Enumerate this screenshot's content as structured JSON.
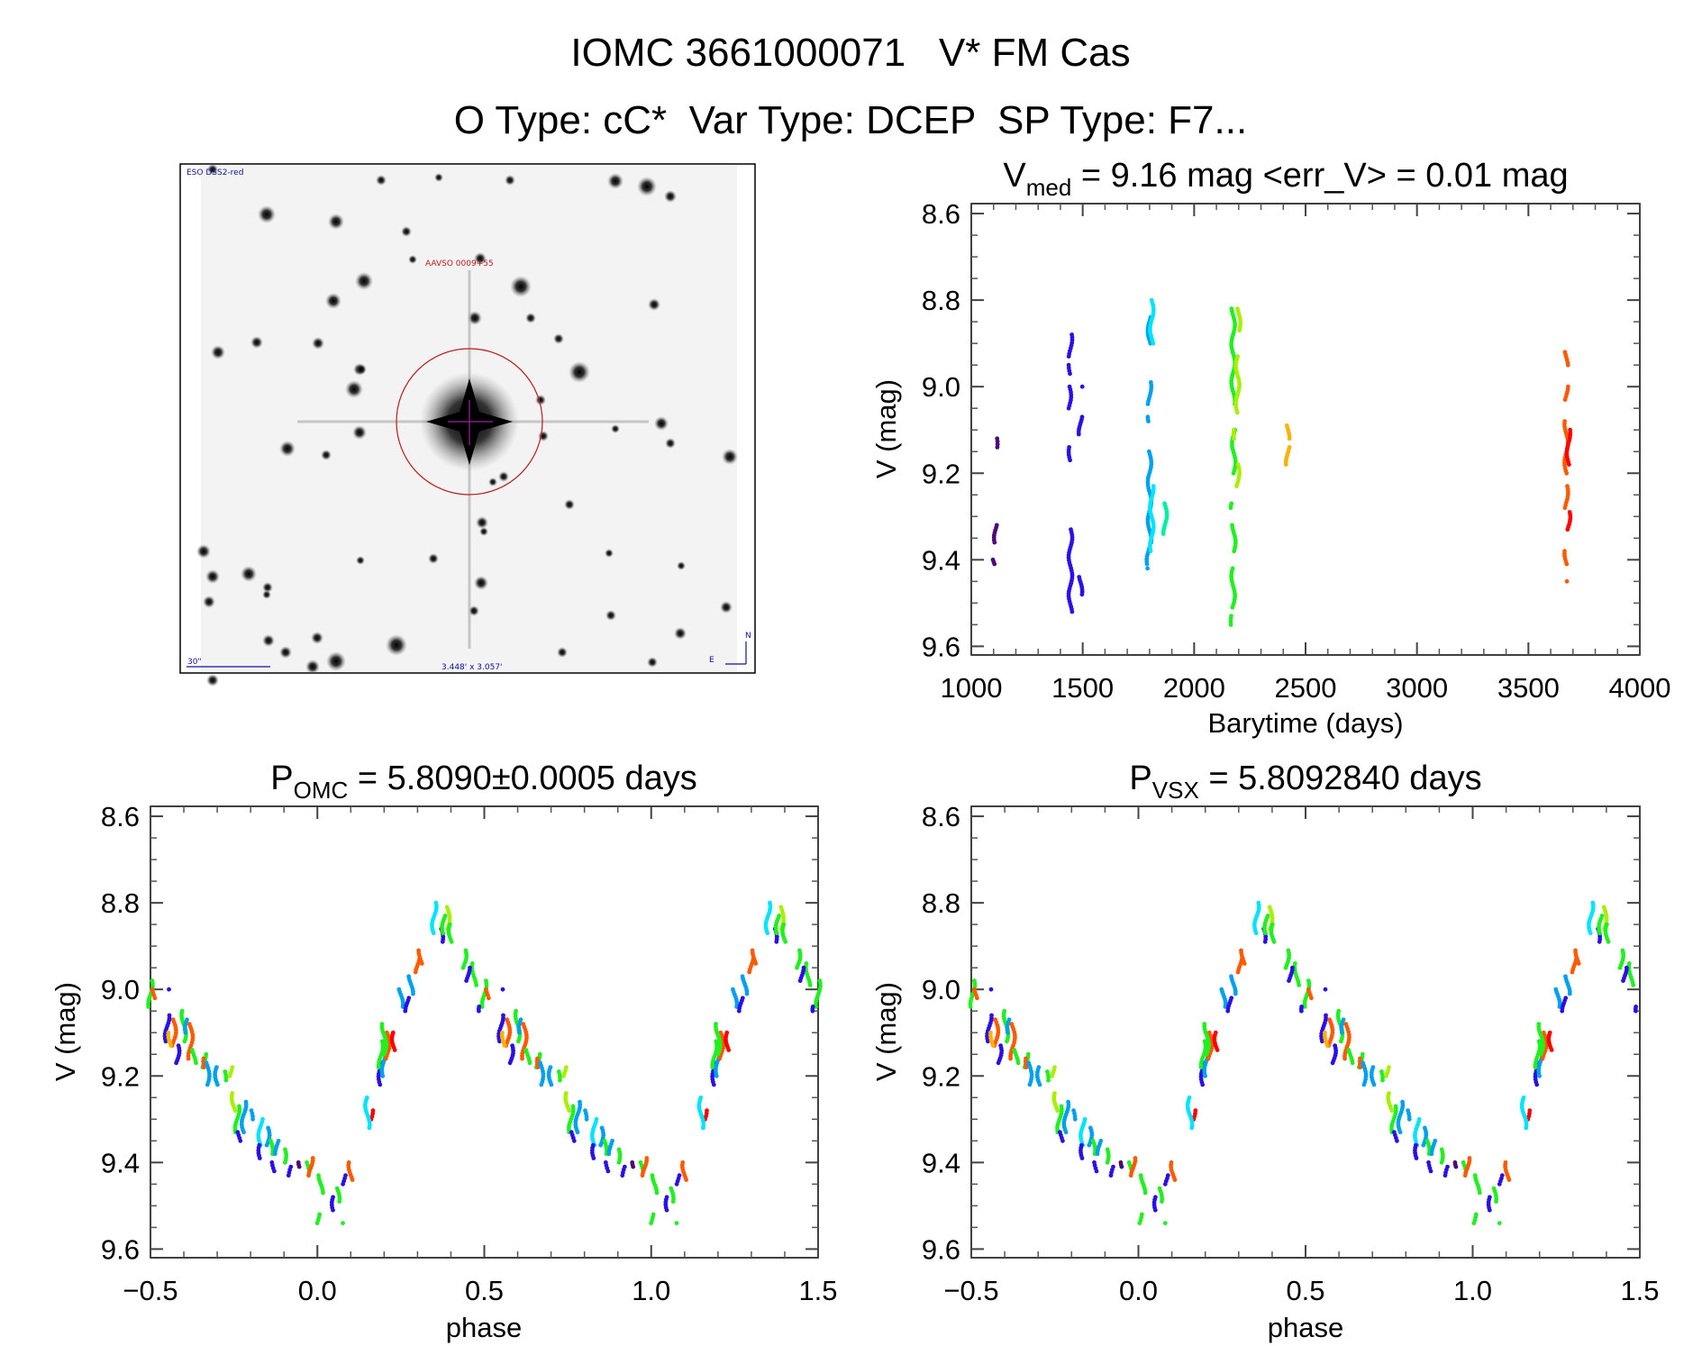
{
  "header": {
    "line1": "IOMC 3661000071   V* FM Cas",
    "line2": "O Type: cC*  Var Type: DCEP  SP Type: F7..."
  },
  "finder_image": {
    "survey_label": "ESO DSS2-red",
    "target_label": "AAVSO 0009+55",
    "scale_label": "30\"",
    "fov_label": "3.448' x 3.057'",
    "north_label": "N",
    "east_label": "E"
  },
  "colors": [
    "#4b0a78",
    "#2a10e8",
    "#00a0f0",
    "#00e4ff",
    "#20f020",
    "#a8f000",
    "#ffb000",
    "#ff5a00",
    "#ff0000",
    "#00f0a0"
  ],
  "chart_data": [
    {
      "id": "lightcurve",
      "type": "scatter",
      "title": {
        "main": "V",
        "sub": "med",
        "rest": " = 9.16 mag <err_V> = 0.01 mag"
      },
      "xlabel": "Barytime (days)",
      "ylabel": "V (mag)",
      "xlim": [
        1000,
        4000
      ],
      "ylim": [
        9.62,
        8.577
      ],
      "xticks": [
        {
          "v": 1000,
          "l": "1000"
        },
        {
          "v": 1500,
          "l": "1500"
        },
        {
          "v": 2000,
          "l": "2000"
        },
        {
          "v": 2500,
          "l": "2500"
        },
        {
          "v": 3000,
          "l": "3000"
        },
        {
          "v": 3500,
          "l": "3500"
        },
        {
          "v": 4000,
          "l": "4000"
        }
      ],
      "yticks": [
        {
          "v": 8.6,
          "l": "8.6"
        },
        {
          "v": 8.8,
          "l": "8.8"
        },
        {
          "v": 9.0,
          "l": "9.0"
        },
        {
          "v": 9.2,
          "l": "9.2"
        },
        {
          "v": 9.4,
          "l": "9.4"
        },
        {
          "v": 9.6,
          "l": "9.6"
        }
      ],
      "x_minor": 100,
      "y_minor": 0.05,
      "segments_note": "each segment = [time, mag_low, mag_high, color_index]",
      "segments": [
        [
          1110,
          9.12,
          9.14,
          0
        ],
        [
          1110,
          9.32,
          9.36,
          0
        ],
        [
          1100,
          9.4,
          9.41,
          0
        ],
        [
          1445,
          8.88,
          8.93,
          1
        ],
        [
          1445,
          8.95,
          8.97,
          1
        ],
        [
          1440,
          9.0,
          9.05,
          1
        ],
        [
          1445,
          9.14,
          9.17,
          1
        ],
        [
          1445,
          9.33,
          9.52,
          1
        ],
        [
          1490,
          9.0,
          9.0,
          1
        ],
        [
          1490,
          9.07,
          9.11,
          1
        ],
        [
          1490,
          9.44,
          9.48,
          1
        ],
        [
          1800,
          8.84,
          8.9,
          2
        ],
        [
          1800,
          8.99,
          9.04,
          2
        ],
        [
          1800,
          9.07,
          9.08,
          2
        ],
        [
          1800,
          9.15,
          9.36,
          2
        ],
        [
          1795,
          9.37,
          9.41,
          2
        ],
        [
          1795,
          9.42,
          9.42,
          2
        ],
        [
          1810,
          8.8,
          8.9,
          3
        ],
        [
          1810,
          9.23,
          9.38,
          3
        ],
        [
          1870,
          9.27,
          9.34,
          9
        ],
        [
          2175,
          8.82,
          9.04,
          4
        ],
        [
          2178,
          9.1,
          9.2,
          4
        ],
        [
          2172,
          9.27,
          9.28,
          4
        ],
        [
          2178,
          9.32,
          9.38,
          4
        ],
        [
          2175,
          9.42,
          9.51,
          4
        ],
        [
          2172,
          9.53,
          9.55,
          4
        ],
        [
          2200,
          8.82,
          8.87,
          5
        ],
        [
          2195,
          8.93,
          9.06,
          5
        ],
        [
          2195,
          9.18,
          9.23,
          5
        ],
        [
          2185,
          9.1,
          9.12,
          5
        ],
        [
          2420,
          9.09,
          9.12,
          6
        ],
        [
          2420,
          9.14,
          9.18,
          6
        ],
        [
          3670,
          8.92,
          8.95,
          7
        ],
        [
          3670,
          9.0,
          9.03,
          7
        ],
        [
          3670,
          9.08,
          9.2,
          7
        ],
        [
          3670,
          9.23,
          9.28,
          7
        ],
        [
          3670,
          9.38,
          9.41,
          7
        ],
        [
          3668,
          9.45,
          9.45,
          7
        ],
        [
          3680,
          9.1,
          9.18,
          8
        ],
        [
          3680,
          9.29,
          9.33,
          8
        ]
      ]
    },
    {
      "id": "phase_omc",
      "type": "scatter",
      "title": {
        "main": "P",
        "sub": "OMC",
        "rest": " = 5.8090±0.0005 days"
      },
      "xlabel": "phase",
      "ylabel": "V (mag)",
      "xlim": [
        -0.5,
        1.5
      ],
      "ylim": [
        9.62,
        8.577
      ],
      "xticks": [
        {
          "v": -0.5,
          "l": "−0.5"
        },
        {
          "v": 0,
          "l": "0.0"
        },
        {
          "v": 0.5,
          "l": "0.5"
        },
        {
          "v": 1.0,
          "l": "1.0"
        },
        {
          "v": 1.5,
          "l": "1.5"
        }
      ],
      "yticks": [
        {
          "v": 8.6,
          "l": "8.6"
        },
        {
          "v": 8.8,
          "l": "8.8"
        },
        {
          "v": 9.0,
          "l": "9.0"
        },
        {
          "v": 9.2,
          "l": "9.2"
        },
        {
          "v": 9.4,
          "l": "9.4"
        },
        {
          "v": 9.6,
          "l": "9.6"
        }
      ],
      "x_minor": 0.1,
      "y_minor": 0.05,
      "period_days": 5.809
    },
    {
      "id": "phase_vsx",
      "type": "scatter",
      "title": {
        "main": "P",
        "sub": "VSX",
        "rest": " = 5.8092840 days"
      },
      "xlabel": "phase",
      "ylabel": "V (mag)",
      "xlim": [
        -0.5,
        1.5
      ],
      "ylim": [
        9.62,
        8.577
      ],
      "xticks": [
        {
          "v": -0.5,
          "l": "−0.5"
        },
        {
          "v": 0,
          "l": "0.0"
        },
        {
          "v": 0.5,
          "l": "0.5"
        },
        {
          "v": 1.0,
          "l": "1.0"
        },
        {
          "v": 1.5,
          "l": "1.5"
        }
      ],
      "yticks": [
        {
          "v": 8.6,
          "l": "8.6"
        },
        {
          "v": 8.8,
          "l": "8.8"
        },
        {
          "v": 9.0,
          "l": "9.0"
        },
        {
          "v": 9.2,
          "l": "9.2"
        },
        {
          "v": 9.4,
          "l": "9.4"
        },
        {
          "v": 9.6,
          "l": "9.6"
        }
      ],
      "x_minor": 0.1,
      "y_minor": 0.05,
      "period_days": 5.809284
    }
  ],
  "phase_segments_note": "folded points in phase [0,1): [phase, mag_low, mag_high, color_index]; plotted repeated over -0.5..1.5",
  "phase_segments": [
    [
      0.5,
      8.98,
      9.04,
      4
    ],
    [
      0.51,
      9.0,
      9.02,
      7
    ],
    [
      0.55,
      9.0,
      9.0,
      1
    ],
    [
      0.55,
      9.06,
      9.12,
      1
    ],
    [
      0.57,
      9.07,
      9.13,
      7
    ],
    [
      0.56,
      9.1,
      9.13,
      6
    ],
    [
      0.58,
      9.13,
      9.17,
      1
    ],
    [
      0.6,
      9.05,
      9.12,
      4
    ],
    [
      0.61,
      9.07,
      9.1,
      2
    ],
    [
      0.62,
      9.08,
      9.16,
      7
    ],
    [
      0.63,
      9.14,
      9.17,
      4
    ],
    [
      0.66,
      9.15,
      9.18,
      4
    ],
    [
      0.665,
      9.16,
      9.18,
      7
    ],
    [
      0.67,
      9.17,
      9.22,
      2
    ],
    [
      0.7,
      9.18,
      9.22,
      2
    ],
    [
      0.72,
      9.19,
      9.21,
      4
    ],
    [
      0.74,
      9.18,
      9.2,
      5
    ],
    [
      0.75,
      9.24,
      9.28,
      5
    ],
    [
      0.76,
      9.27,
      9.33,
      4
    ],
    [
      0.765,
      9.33,
      9.35,
      1
    ],
    [
      0.78,
      9.26,
      9.33,
      2
    ],
    [
      0.8,
      9.28,
      9.3,
      2
    ],
    [
      0.83,
      9.3,
      9.36,
      3
    ],
    [
      0.85,
      9.32,
      9.36,
      2
    ],
    [
      0.83,
      9.36,
      9.39,
      1
    ],
    [
      0.86,
      9.35,
      9.38,
      4
    ],
    [
      0.88,
      9.35,
      9.38,
      2
    ],
    [
      0.87,
      9.4,
      9.42,
      1
    ],
    [
      0.9,
      9.37,
      9.4,
      4
    ],
    [
      0.92,
      9.41,
      9.43,
      1
    ],
    [
      0.95,
      9.4,
      9.41,
      0
    ],
    [
      0.97,
      9.4,
      9.42,
      4
    ],
    [
      0.98,
      9.39,
      9.43,
      7
    ],
    [
      0.01,
      9.43,
      9.47,
      4
    ],
    [
      0.0,
      9.52,
      9.54,
      4
    ],
    [
      0.05,
      9.48,
      9.51,
      1
    ],
    [
      0.06,
      9.46,
      9.49,
      4
    ],
    [
      0.08,
      9.43,
      9.45,
      1
    ],
    [
      0.1,
      9.4,
      9.44,
      7
    ],
    [
      0.07,
      9.54,
      9.54,
      4
    ],
    [
      0.16,
      9.28,
      9.3,
      8
    ],
    [
      0.15,
      9.25,
      9.32,
      3
    ],
    [
      0.19,
      9.17,
      9.22,
      1
    ],
    [
      0.2,
      9.12,
      9.2,
      2
    ],
    [
      0.21,
      9.1,
      9.16,
      7
    ],
    [
      0.2,
      9.08,
      9.15,
      4
    ],
    [
      0.23,
      9.1,
      9.14,
      8
    ],
    [
      0.19,
      9.12,
      9.18,
      4
    ],
    [
      0.25,
      9.0,
      9.04,
      2
    ],
    [
      0.27,
      9.02,
      9.05,
      1
    ],
    [
      0.28,
      8.97,
      9.01,
      2
    ],
    [
      0.3,
      8.93,
      8.96,
      7
    ],
    [
      0.31,
      8.91,
      8.94,
      7
    ],
    [
      0.35,
      8.8,
      8.87,
      3
    ],
    [
      0.37,
      8.86,
      8.89,
      1
    ],
    [
      0.38,
      8.83,
      8.87,
      4
    ],
    [
      0.39,
      8.81,
      8.86,
      5
    ],
    [
      0.4,
      8.85,
      8.89,
      4
    ],
    [
      0.44,
      8.91,
      8.95,
      4
    ],
    [
      0.47,
      8.94,
      8.99,
      4
    ],
    [
      0.45,
      8.95,
      8.98,
      1
    ],
    [
      0.49,
      9.04,
      9.05,
      1
    ]
  ]
}
